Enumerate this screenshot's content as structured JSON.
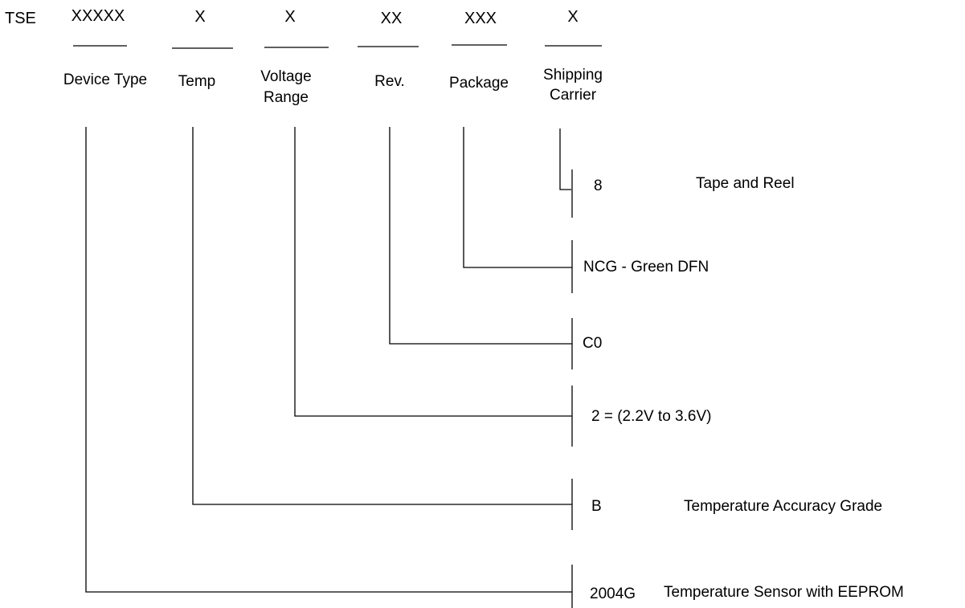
{
  "prefix": "TSE",
  "fields": [
    {
      "id": "device-type",
      "code": "XXXXX",
      "label_lines": [
        "Device Type"
      ]
    },
    {
      "id": "temp",
      "code": "X",
      "label_lines": [
        "Temp"
      ]
    },
    {
      "id": "voltage-range",
      "code": "X",
      "label_lines": [
        "Voltage",
        "Range"
      ]
    },
    {
      "id": "rev",
      "code": "XX",
      "label_lines": [
        "Rev."
      ]
    },
    {
      "id": "package",
      "code": "XXX",
      "label_lines": [
        "Package"
      ]
    },
    {
      "id": "shipping-carrier",
      "code": "X",
      "label_lines": [
        "Shipping",
        "Carrier"
      ]
    }
  ],
  "options": [
    {
      "field": "shipping-carrier",
      "code": "8",
      "description": "Tape and Reel"
    },
    {
      "field": "package",
      "code": "NCG - Green DFN",
      "description": ""
    },
    {
      "field": "rev",
      "code": "C0",
      "description": ""
    },
    {
      "field": "voltage-range",
      "code": "2 = (2.2V to 3.6V)",
      "description": ""
    },
    {
      "field": "temp",
      "code": "B",
      "description": "Temperature Accuracy Grade"
    },
    {
      "field": "device-type",
      "code": "2004G",
      "description": "Temperature Sensor with EEPROM"
    }
  ]
}
